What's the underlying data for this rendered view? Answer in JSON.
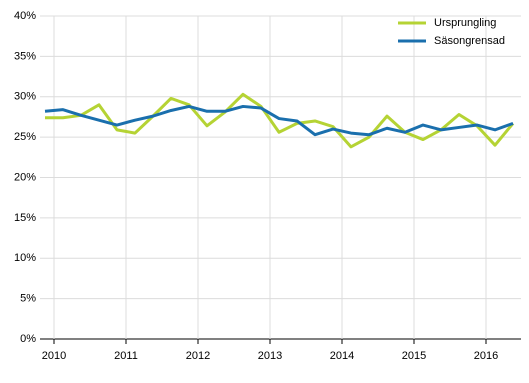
{
  "chart_data": {
    "type": "line",
    "categories": [
      "2010",
      null,
      null,
      null,
      "2011",
      null,
      null,
      null,
      "2012",
      null,
      null,
      null,
      "2013",
      null,
      null,
      null,
      "2014",
      null,
      null,
      null,
      "2015",
      null,
      null,
      null,
      "2016",
      null,
      null
    ],
    "series": [
      {
        "name": "Ursprungling",
        "color": "#b5d334",
        "values": [
          27.4,
          27.4,
          27.7,
          29.0,
          25.9,
          25.5,
          27.6,
          29.8,
          29.0,
          26.4,
          28.1,
          30.3,
          28.8,
          25.6,
          26.7,
          27.0,
          26.3,
          23.8,
          25.0,
          27.6,
          25.6,
          24.7,
          25.9,
          27.8,
          26.4,
          24.0,
          26.7
        ]
      },
      {
        "name": "Säsongrensad",
        "color": "#1a6fad",
        "values": [
          28.2,
          28.4,
          27.7,
          27.1,
          26.5,
          27.1,
          27.6,
          28.3,
          28.8,
          28.2,
          28.2,
          28.8,
          28.6,
          27.3,
          27.0,
          25.3,
          26.0,
          25.5,
          25.3,
          26.1,
          25.6,
          26.5,
          25.9,
          26.2,
          26.5,
          25.9,
          26.7
        ]
      }
    ],
    "ylim": [
      0,
      40
    ],
    "yticks": [
      {
        "value": 0,
        "label": "0%"
      },
      {
        "value": 5,
        "label": "5%"
      },
      {
        "value": 10,
        "label": "10%"
      },
      {
        "value": 15,
        "label": "15%"
      },
      {
        "value": 20,
        "label": "20%"
      },
      {
        "value": 25,
        "label": "25%"
      },
      {
        "value": 30,
        "label": "30%"
      },
      {
        "value": 35,
        "label": "35%"
      },
      {
        "value": 40,
        "label": "40%"
      }
    ],
    "grid": true,
    "legend": "top-right"
  }
}
